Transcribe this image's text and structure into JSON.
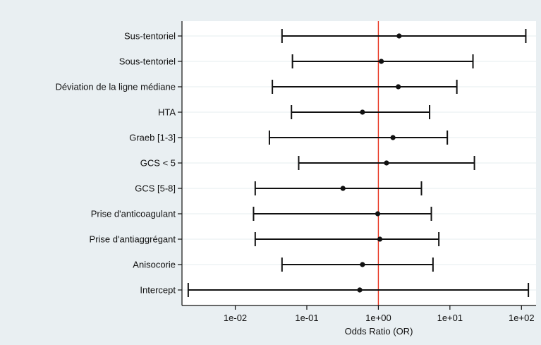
{
  "chart_data": {
    "type": "forest",
    "xlabel": "Odds Ratio (OR)",
    "x_scale": "log10",
    "xlim": [
      0.0018,
      160
    ],
    "x_ticks": [
      {
        "value": 0.01,
        "label": "1e-02"
      },
      {
        "value": 0.1,
        "label": "1e-01"
      },
      {
        "value": 1,
        "label": "1e+00"
      },
      {
        "value": 10,
        "label": "1e+01"
      },
      {
        "value": 100,
        "label": "1e+02"
      }
    ],
    "reference_line": {
      "value": 1,
      "color": "#e8321e"
    },
    "grid": true,
    "colors": {
      "plot_background": "#ffffff",
      "outer_background": "#e9eff2",
      "gridline": "#e6ecef",
      "marks": "#111111"
    },
    "rows": [
      {
        "label": "Sus-tentoriel",
        "or": 1.95,
        "ci_low": 0.045,
        "ci_high": 115
      },
      {
        "label": "Sous-tentoriel",
        "or": 1.1,
        "ci_low": 0.063,
        "ci_high": 21
      },
      {
        "label": "Déviation de la ligne médiane",
        "or": 1.9,
        "ci_low": 0.033,
        "ci_high": 12.5
      },
      {
        "label": "HTA",
        "or": 0.6,
        "ci_low": 0.061,
        "ci_high": 5.2
      },
      {
        "label": "Graeb [1-3]",
        "or": 1.6,
        "ci_low": 0.03,
        "ci_high": 9.2
      },
      {
        "label": "GCS < 5",
        "or": 1.3,
        "ci_low": 0.077,
        "ci_high": 22
      },
      {
        "label": "GCS [5-8]",
        "or": 0.32,
        "ci_low": 0.019,
        "ci_high": 4.0
      },
      {
        "label": "Prise d'anticoagulant",
        "or": 0.98,
        "ci_low": 0.018,
        "ci_high": 5.5
      },
      {
        "label": "Prise d'antiaggrégant",
        "or": 1.05,
        "ci_low": 0.019,
        "ci_high": 7.0
      },
      {
        "label": "Anisocorie",
        "or": 0.6,
        "ci_low": 0.045,
        "ci_high": 5.8
      },
      {
        "label": "Intercept",
        "or": 0.55,
        "ci_low": 0.0022,
        "ci_high": 125
      }
    ]
  }
}
